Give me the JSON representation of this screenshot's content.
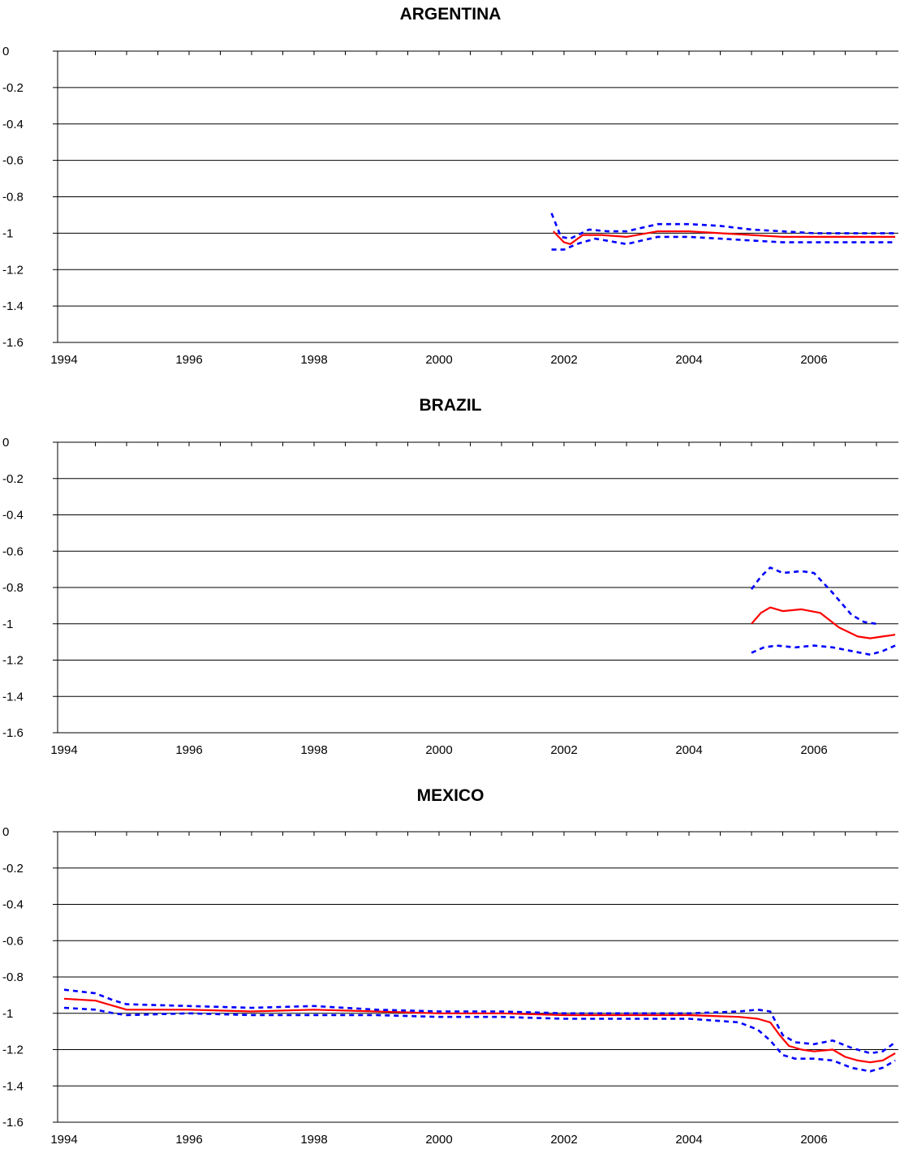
{
  "chart_data": [
    {
      "type": "line",
      "title": "ARGENTINA",
      "xlim": [
        1994,
        2007.3
      ],
      "ylim": [
        -1.6,
        0
      ],
      "x_ticks": [
        "1994",
        "1996",
        "1998",
        "2000",
        "2002",
        "2004",
        "2006"
      ],
      "y_ticks": [
        "0",
        "-0.2",
        "-0.4",
        "-0.6",
        "-0.8",
        "-1",
        "-1.2",
        "-1.4",
        "-1.6"
      ],
      "grid": "horizontal",
      "series": [
        {
          "style": "solid",
          "color": "#ff0000",
          "x": [
            2001.83,
            2002.0,
            2002.1,
            2002.3,
            2002.6,
            2003.0,
            2003.5,
            2004.0,
            2004.5,
            2005.0,
            2005.5,
            2006.0,
            2006.5,
            2007.0,
            2007.3
          ],
          "y": [
            -0.99,
            -1.05,
            -1.06,
            -1.01,
            -1.01,
            -1.02,
            -0.99,
            -0.99,
            -1.0,
            -1.01,
            -1.02,
            -1.02,
            -1.02,
            -1.02,
            -1.02
          ]
        },
        {
          "style": "dashed",
          "color": "#0000ff",
          "x": [
            2001.8,
            2001.95,
            2002.1,
            2002.4,
            2002.7,
            2003.0,
            2003.5,
            2004.0,
            2004.5,
            2005.0,
            2005.5,
            2006.0,
            2006.5,
            2007.0,
            2007.3
          ],
          "y": [
            -0.89,
            -1.02,
            -1.03,
            -0.98,
            -0.99,
            -0.99,
            -0.95,
            -0.95,
            -0.96,
            -0.98,
            -0.99,
            -1.0,
            -1.0,
            -1.0,
            -1.0
          ]
        },
        {
          "style": "dashed",
          "color": "#0000ff",
          "x": [
            2001.8,
            2002.0,
            2002.2,
            2002.5,
            2003.0,
            2003.5,
            2004.0,
            2004.5,
            2005.0,
            2005.5,
            2006.0,
            2006.5,
            2007.0,
            2007.3
          ],
          "y": [
            -1.09,
            -1.09,
            -1.06,
            -1.03,
            -1.06,
            -1.02,
            -1.02,
            -1.03,
            -1.04,
            -1.05,
            -1.05,
            -1.05,
            -1.05,
            -1.05
          ]
        }
      ]
    },
    {
      "type": "line",
      "title": "BRAZIL",
      "xlim": [
        1994,
        2007.3
      ],
      "ylim": [
        -1.6,
        0
      ],
      "x_ticks": [
        "1994",
        "1996",
        "1998",
        "2000",
        "2002",
        "2004",
        "2006"
      ],
      "y_ticks": [
        "0",
        "-0.2",
        "-0.4",
        "-0.6",
        "-0.8",
        "-1",
        "-1.2",
        "-1.4",
        "-1.6"
      ],
      "grid": "horizontal",
      "series": [
        {
          "style": "solid",
          "color": "#ff0000",
          "x": [
            2005.0,
            2005.15,
            2005.3,
            2005.5,
            2005.8,
            2006.1,
            2006.4,
            2006.7,
            2006.9,
            2007.1,
            2007.3
          ],
          "y": [
            -1.0,
            -0.94,
            -0.91,
            -0.93,
            -0.92,
            -0.94,
            -1.02,
            -1.07,
            -1.08,
            -1.07,
            -1.06
          ]
        },
        {
          "style": "dashed",
          "color": "#0000ff",
          "x": [
            2005.0,
            2005.15,
            2005.3,
            2005.5,
            2005.8,
            2006.0,
            2006.3,
            2006.6,
            2006.8,
            2007.0
          ],
          "y": [
            -0.81,
            -0.74,
            -0.69,
            -0.72,
            -0.71,
            -0.72,
            -0.83,
            -0.95,
            -0.99,
            -1.0
          ]
        },
        {
          "style": "dashed",
          "color": "#0000ff",
          "x": [
            2005.0,
            2005.2,
            2005.4,
            2005.7,
            2006.0,
            2006.3,
            2006.6,
            2006.9,
            2007.1,
            2007.3
          ],
          "y": [
            -1.16,
            -1.13,
            -1.12,
            -1.13,
            -1.12,
            -1.13,
            -1.15,
            -1.17,
            -1.15,
            -1.12
          ]
        }
      ]
    },
    {
      "type": "line",
      "title": "MEXICO",
      "xlim": [
        1994,
        2007.3
      ],
      "ylim": [
        -1.6,
        0
      ],
      "x_ticks": [
        "1994",
        "1996",
        "1998",
        "2000",
        "2002",
        "2004",
        "2006"
      ],
      "y_ticks": [
        "0",
        "-0.2",
        "-0.4",
        "-0.6",
        "-0.8",
        "-1",
        "-1.2",
        "-1.4",
        "-1.6"
      ],
      "grid": "horizontal",
      "series": [
        {
          "style": "solid",
          "color": "#ff0000",
          "x": [
            1994.0,
            1994.5,
            1994.8,
            1995.0,
            1995.5,
            1996.0,
            1997.0,
            1998.0,
            1999.0,
            2000.0,
            2001.0,
            2002.0,
            2003.0,
            2004.0,
            2004.8,
            2005.1,
            2005.3,
            2005.45,
            2005.6,
            2005.8,
            2006.0,
            2006.3,
            2006.5,
            2006.7,
            2006.9,
            2007.1,
            2007.3
          ],
          "y": [
            -0.92,
            -0.93,
            -0.96,
            -0.98,
            -0.98,
            -0.98,
            -0.99,
            -0.98,
            -0.99,
            -1.0,
            -1.0,
            -1.01,
            -1.01,
            -1.01,
            -1.02,
            -1.03,
            -1.05,
            -1.12,
            -1.18,
            -1.2,
            -1.21,
            -1.2,
            -1.24,
            -1.26,
            -1.27,
            -1.26,
            -1.22
          ]
        },
        {
          "style": "dashed",
          "color": "#0000ff",
          "x": [
            1994.0,
            1994.5,
            1994.8,
            1995.0,
            1996.0,
            1997.0,
            1998.0,
            1999.0,
            2000.0,
            2001.0,
            2002.0,
            2003.0,
            2004.0,
            2004.8,
            2005.1,
            2005.3,
            2005.5,
            2005.7,
            2006.0,
            2006.3,
            2006.6,
            2006.9,
            2007.1,
            2007.3
          ],
          "y": [
            -0.87,
            -0.89,
            -0.93,
            -0.95,
            -0.96,
            -0.97,
            -0.96,
            -0.98,
            -0.99,
            -0.99,
            -1.0,
            -1.0,
            -1.0,
            -0.99,
            -0.98,
            -0.99,
            -1.12,
            -1.16,
            -1.17,
            -1.15,
            -1.19,
            -1.22,
            -1.21,
            -1.16
          ]
        },
        {
          "style": "dashed",
          "color": "#0000ff",
          "x": [
            1994.0,
            1994.5,
            1994.8,
            1995.0,
            1996.0,
            1997.0,
            1998.0,
            1999.0,
            2000.0,
            2001.0,
            2002.0,
            2003.0,
            2004.0,
            2004.8,
            2005.1,
            2005.3,
            2005.5,
            2005.7,
            2006.0,
            2006.3,
            2006.6,
            2006.9,
            2007.1,
            2007.3
          ],
          "y": [
            -0.97,
            -0.98,
            -1.0,
            -1.01,
            -1.0,
            -1.01,
            -1.01,
            -1.01,
            -1.02,
            -1.02,
            -1.03,
            -1.03,
            -1.03,
            -1.05,
            -1.09,
            -1.15,
            -1.23,
            -1.25,
            -1.25,
            -1.26,
            -1.3,
            -1.32,
            -1.3,
            -1.26
          ]
        }
      ]
    }
  ]
}
